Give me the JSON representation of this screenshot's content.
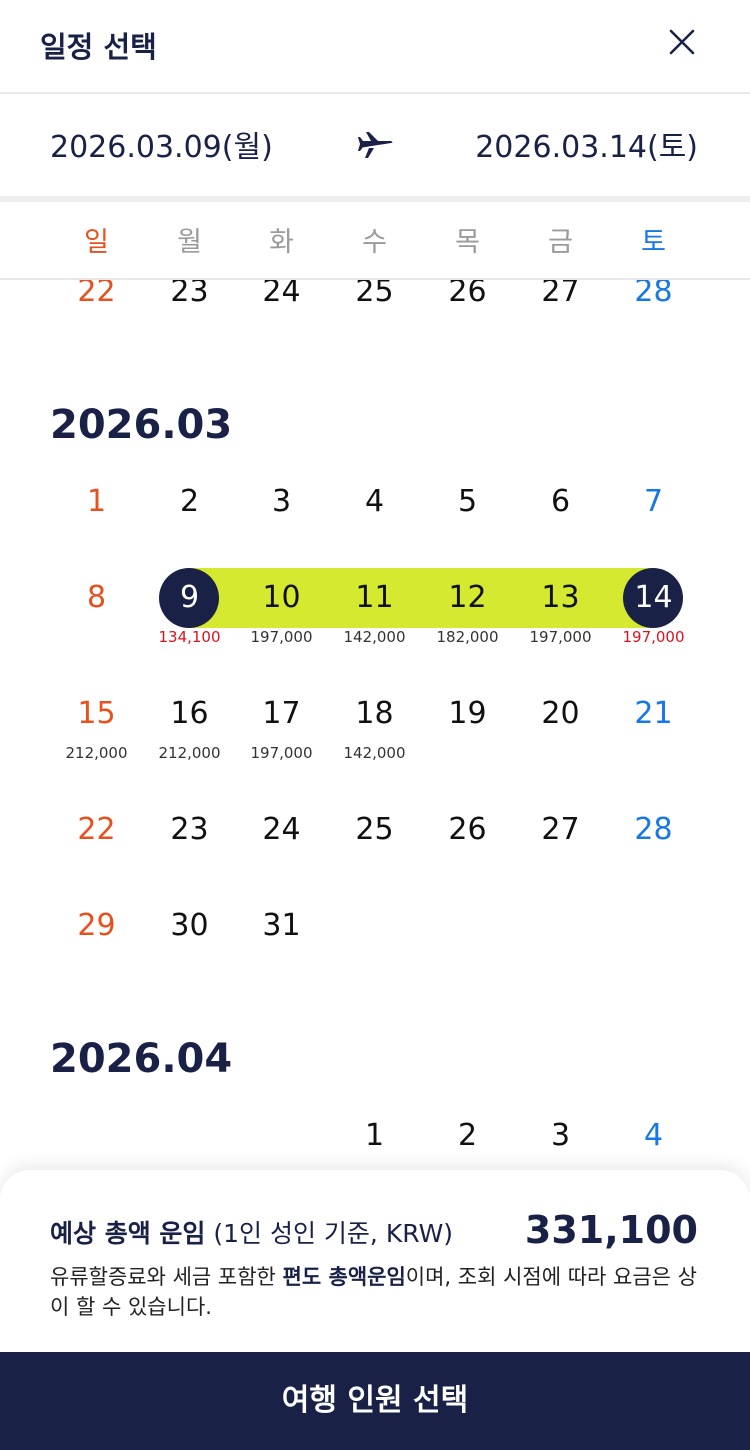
{
  "header": {
    "title": "일정 선택"
  },
  "range": {
    "start": "2026.03.09(월)",
    "end": "2026.03.14(토)"
  },
  "weekdays": [
    "일",
    "월",
    "화",
    "수",
    "목",
    "금",
    "토"
  ],
  "prev_week": [
    "22",
    "23",
    "24",
    "25",
    "26",
    "27",
    "28"
  ],
  "march": {
    "title": "2026.03",
    "days": [
      "1",
      "2",
      "3",
      "4",
      "5",
      "6",
      "7",
      "8",
      "9",
      "10",
      "11",
      "12",
      "13",
      "14",
      "15",
      "16",
      "17",
      "18",
      "19",
      "20",
      "21",
      "22",
      "23",
      "24",
      "25",
      "26",
      "27",
      "28",
      "29",
      "30",
      "31"
    ],
    "prices": {
      "9": "134,100",
      "10": "197,000",
      "11": "142,000",
      "12": "182,000",
      "13": "197,000",
      "14": "197,000",
      "15": "212,000",
      "16": "212,000",
      "17": "197,000",
      "18": "142,000"
    },
    "selected_start": "9",
    "selected_end": "14"
  },
  "april": {
    "title": "2026.04",
    "days": [
      "1",
      "2",
      "3",
      "4"
    ]
  },
  "footer": {
    "fare_label_bold": "예상 총액 운임",
    "fare_label_rest": " (1인 성인 기준, KRW)",
    "fare_total": "331,100",
    "note_part1": "유류할증료와 세금 포함한 ",
    "note_bold": "편도 총액운임",
    "note_part2": "이며, 조회 시점에 따라 요금은 상이 할 수 있습니다."
  },
  "cta": {
    "label": "여행 인원 선택"
  },
  "colors": {
    "navy": "#1a2147",
    "highlight": "#d4e92f",
    "sunday": "#e8501e",
    "saturday": "#1678e8",
    "price_red": "#e0101e"
  },
  "icons": {
    "close": "close-icon",
    "plane": "airplane-icon"
  }
}
